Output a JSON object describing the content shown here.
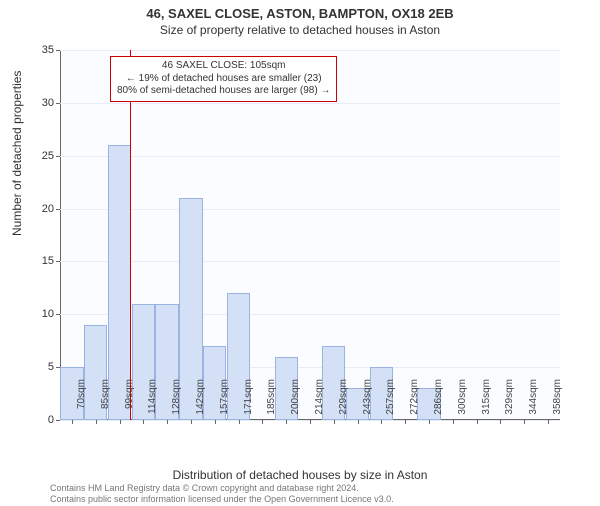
{
  "titles": {
    "line1": "46, SAXEL CLOSE, ASTON, BAMPTON, OX18 2EB",
    "line2": "Size of property relative to detached houses in Aston"
  },
  "chart": {
    "type": "histogram",
    "ylabel": "Number of detached properties",
    "xlabel": "Distribution of detached houses by size in Aston",
    "ylim": [
      0,
      35
    ],
    "ytick_step": 5,
    "yticks": [
      0,
      5,
      10,
      15,
      20,
      25,
      30,
      35
    ],
    "x_categories": [
      "70sqm",
      "85sqm",
      "99sqm",
      "114sqm",
      "128sqm",
      "142sqm",
      "157sqm",
      "171sqm",
      "185sqm",
      "200sqm",
      "214sqm",
      "229sqm",
      "243sqm",
      "257sqm",
      "272sqm",
      "286sqm",
      "300sqm",
      "315sqm",
      "329sqm",
      "344sqm",
      "358sqm"
    ],
    "values": [
      5,
      9,
      26,
      11,
      11,
      21,
      7,
      12,
      0,
      6,
      0,
      7,
      3,
      5,
      0,
      3,
      0,
      0,
      0,
      0,
      0
    ],
    "bar_fill": "#d3e0f5",
    "bar_border": "#9ab3e0",
    "background": "#fafcff",
    "grid_color": "#e8ecf5",
    "marker": {
      "position_index": 2.45,
      "color": "#cc0000"
    },
    "annotation": {
      "line1": "46 SAXEL CLOSE: 105sqm",
      "line2": "← 19% of detached houses are smaller (23)",
      "line3": "80% of semi-detached houses are larger (98) →"
    }
  },
  "footer": {
    "line1": "Contains HM Land Registry data © Crown copyright and database right 2024.",
    "line2": "Contains public sector information licensed under the Open Government Licence v3.0."
  }
}
